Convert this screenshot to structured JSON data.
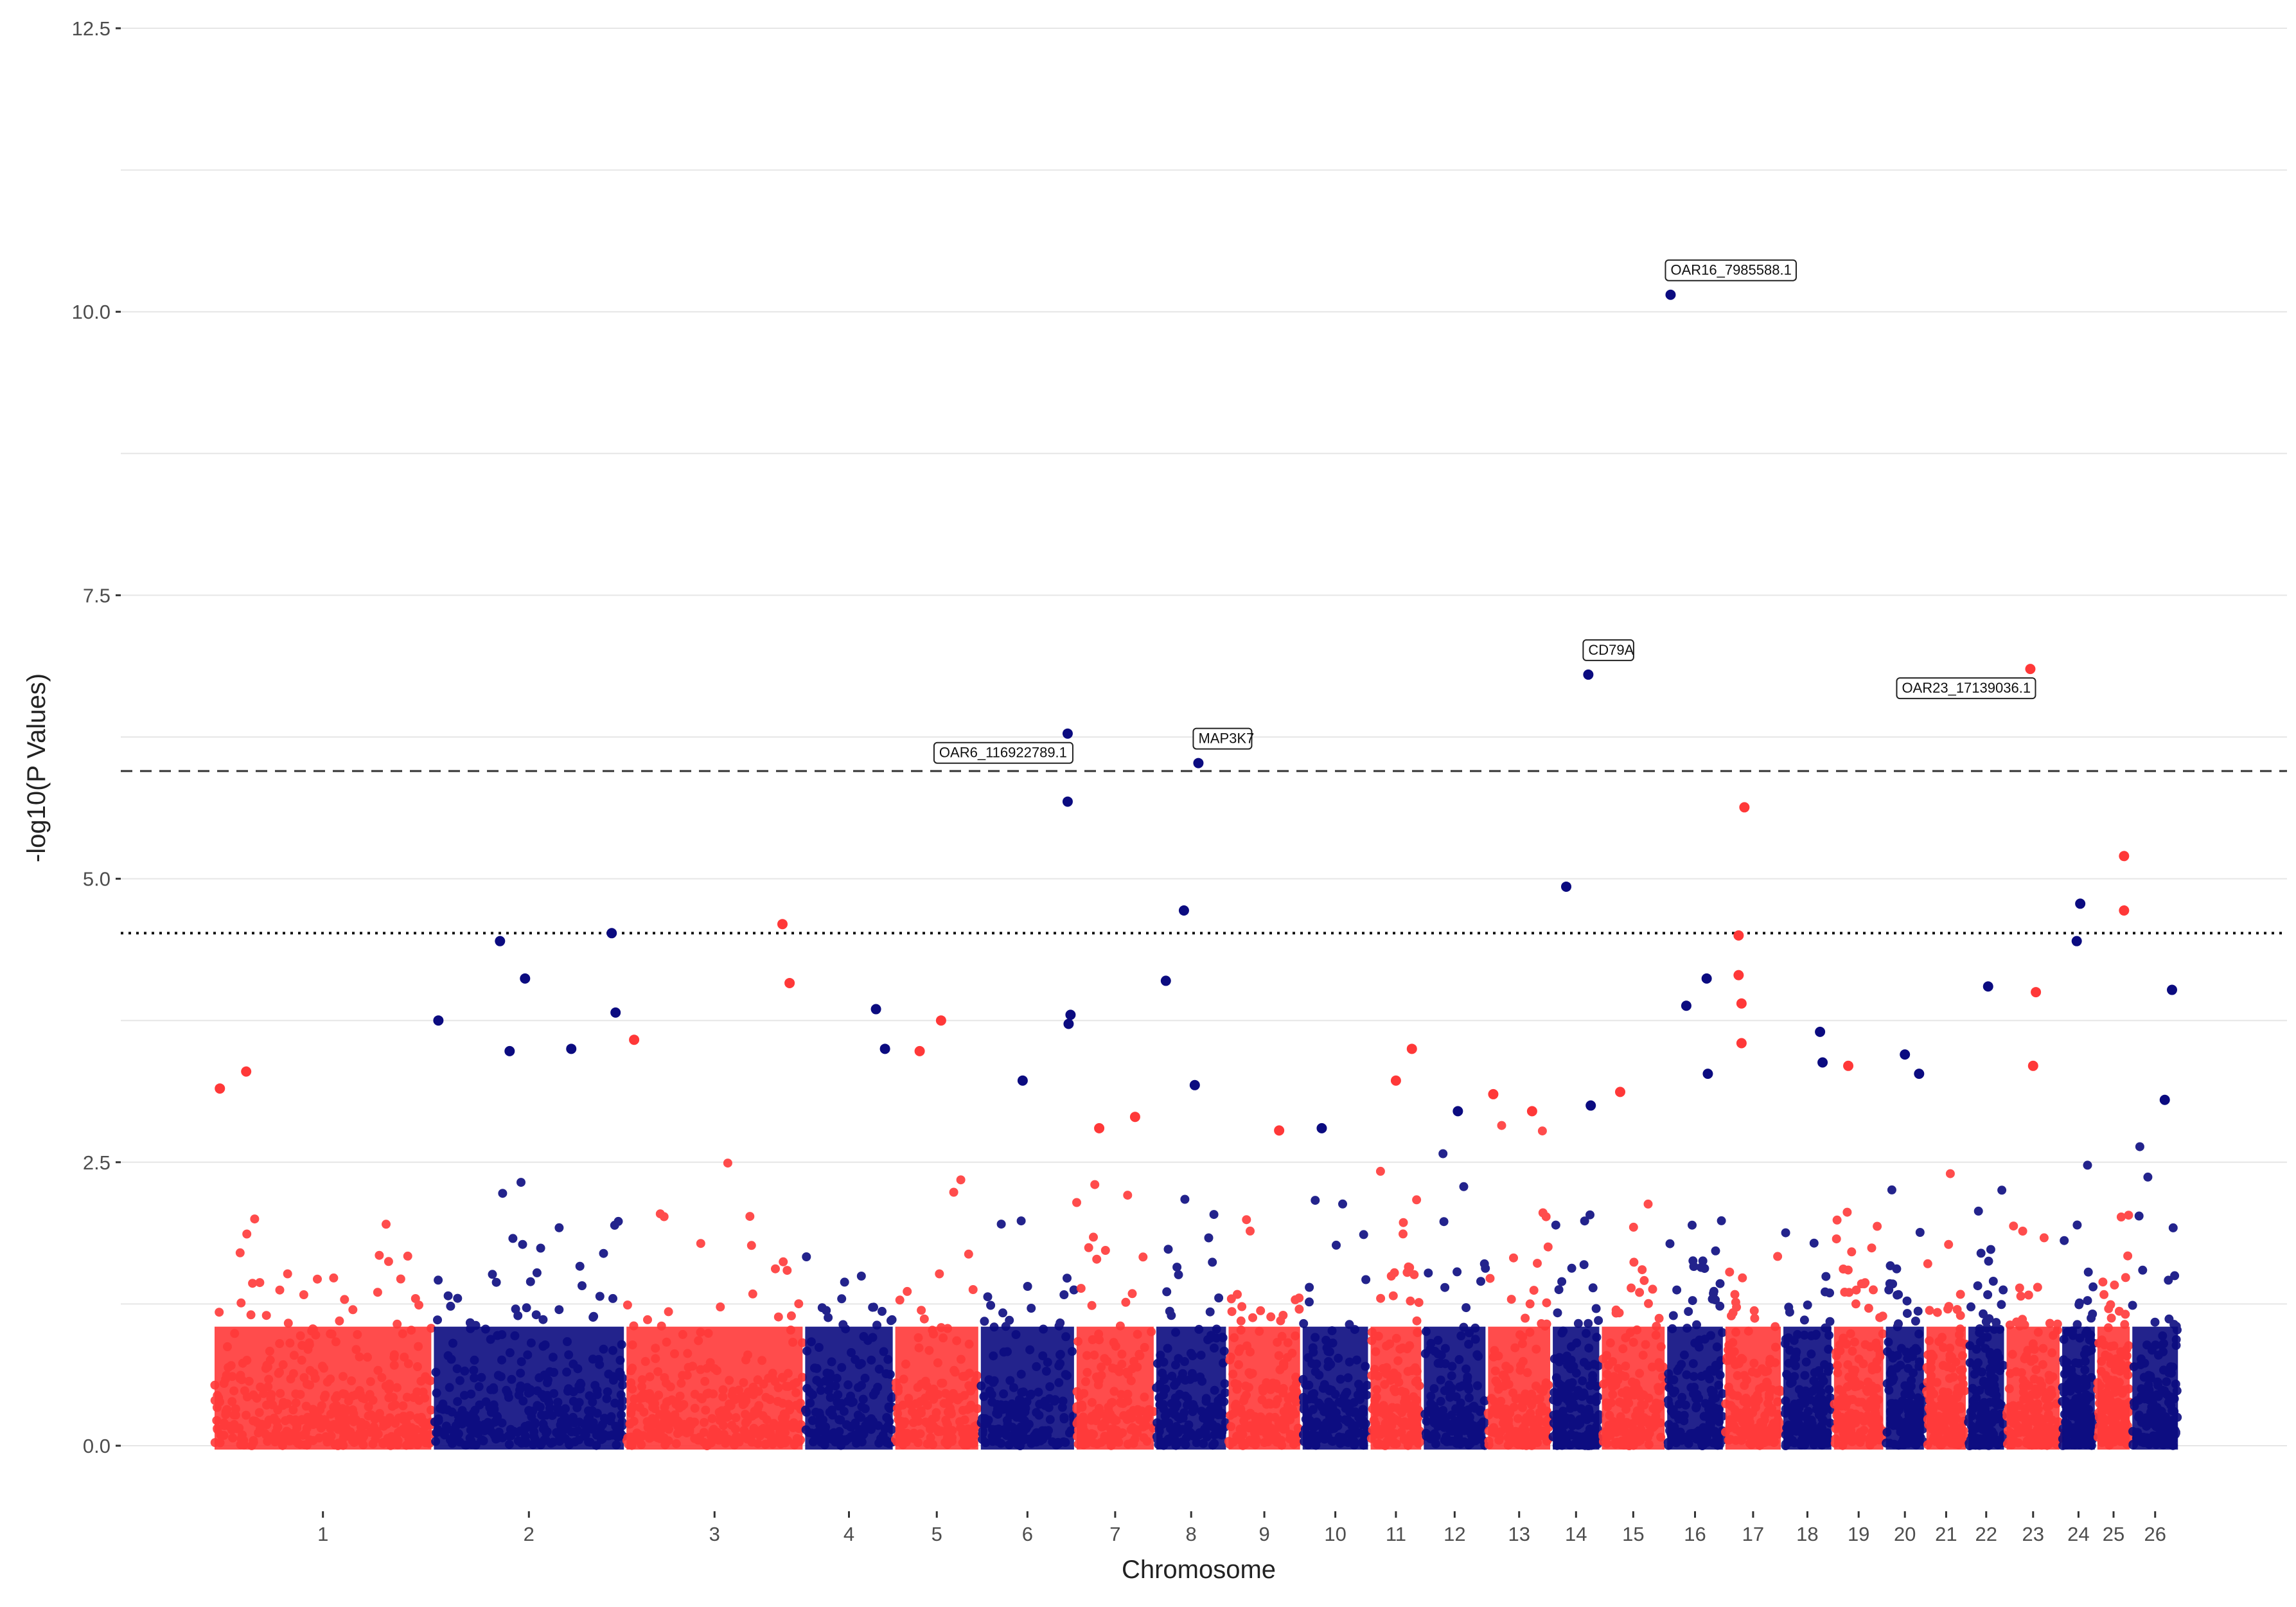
{
  "colors": {
    "odd_chromosome": "#ff3838",
    "even_chromosome": "#0b0b80",
    "grid": "#e6e6e6",
    "threshold": "#333333",
    "background": "#ffffff"
  },
  "chart_data": {
    "type": "scatter",
    "title": "",
    "xlabel": "Chromosome",
    "ylabel": "-log10(P Values)",
    "ylim": [
      0,
      12.5
    ],
    "y_ticks": [
      0.0,
      2.5,
      5.0,
      7.5,
      10.0,
      12.5
    ],
    "y_tick_labels": [
      "0.0",
      "2.5",
      "5.0",
      "7.5",
      "10.0",
      "12.5"
    ],
    "grid": true,
    "legend": "none",
    "genome_wide_threshold": 5.95,
    "suggestive_threshold": 4.52,
    "chromosomes": [
      {
        "label": "1",
        "start": 0,
        "end": 0.101,
        "color": "odd",
        "max_background": 3.3
      },
      {
        "label": "2",
        "start": 0.101,
        "end": 0.1897,
        "color": "even",
        "max_background": 2.7
      },
      {
        "label": "3",
        "start": 0.1897,
        "end": 0.272,
        "color": "odd",
        "max_background": 2.8
      },
      {
        "label": "4",
        "start": 0.272,
        "end": 0.3135,
        "color": "even",
        "max_background": 2.4
      },
      {
        "label": "5",
        "start": 0.3135,
        "end": 0.3529,
        "color": "odd",
        "max_background": 2.5
      },
      {
        "label": "6",
        "start": 0.3529,
        "end": 0.397,
        "color": "even",
        "max_background": 2.2
      },
      {
        "label": "7",
        "start": 0.397,
        "end": 0.4337,
        "color": "odd",
        "max_background": 2.5
      },
      {
        "label": "8",
        "start": 0.4337,
        "end": 0.467,
        "color": "even",
        "max_background": 2.4
      },
      {
        "label": "9",
        "start": 0.467,
        "end": 0.5011,
        "color": "odd",
        "max_background": 2.9
      },
      {
        "label": "10",
        "start": 0.5011,
        "end": 0.5324,
        "color": "even",
        "max_background": 2.4
      },
      {
        "label": "11",
        "start": 0.5324,
        "end": 0.5569,
        "color": "odd",
        "max_background": 2.5
      },
      {
        "label": "12",
        "start": 0.5569,
        "end": 0.5865,
        "color": "even",
        "max_background": 2.9
      },
      {
        "label": "13",
        "start": 0.5865,
        "end": 0.6163,
        "color": "odd",
        "max_background": 2.9
      },
      {
        "label": "14",
        "start": 0.6163,
        "end": 0.6389,
        "color": "even",
        "max_background": 2.5
      },
      {
        "label": "15",
        "start": 0.6389,
        "end": 0.669,
        "color": "odd",
        "max_background": 2.6
      },
      {
        "label": "16",
        "start": 0.669,
        "end": 0.6958,
        "color": "even",
        "max_background": 2.4
      },
      {
        "label": "17",
        "start": 0.6958,
        "end": 0.7225,
        "color": "odd",
        "max_background": 2.8
      },
      {
        "label": "18",
        "start": 0.7225,
        "end": 0.7458,
        "color": "even",
        "max_background": 2.5
      },
      {
        "label": "19",
        "start": 0.7458,
        "end": 0.7697,
        "color": "odd",
        "max_background": 2.1
      },
      {
        "label": "20",
        "start": 0.7697,
        "end": 0.7884,
        "color": "even",
        "max_background": 2.3
      },
      {
        "label": "21",
        "start": 0.7884,
        "end": 0.8077,
        "color": "odd",
        "max_background": 2.6
      },
      {
        "label": "22",
        "start": 0.8077,
        "end": 0.8253,
        "color": "even",
        "max_background": 2.6
      },
      {
        "label": "23",
        "start": 0.8253,
        "end": 0.8509,
        "color": "odd",
        "max_background": 2.7
      },
      {
        "label": "24",
        "start": 0.8509,
        "end": 0.8671,
        "color": "even",
        "max_background": 2.6
      },
      {
        "label": "25",
        "start": 0.8671,
        "end": 0.8832,
        "color": "odd",
        "max_background": 2.3
      },
      {
        "label": "26",
        "start": 0.8832,
        "end": 0.9054,
        "color": "even",
        "max_background": 3.0
      }
    ],
    "notable_points": [
      {
        "chromosome": "1",
        "pos": 0.03,
        "y": 3.15
      },
      {
        "chromosome": "1",
        "pos": 0.15,
        "y": 3.3
      },
      {
        "chromosome": "2",
        "pos": 0.03,
        "y": 3.75
      },
      {
        "chromosome": "2",
        "pos": 0.35,
        "y": 4.45
      },
      {
        "chromosome": "2",
        "pos": 0.48,
        "y": 4.12
      },
      {
        "chromosome": "2",
        "pos": 0.4,
        "y": 3.48
      },
      {
        "chromosome": "2",
        "pos": 0.72,
        "y": 3.5
      },
      {
        "chromosome": "2",
        "pos": 0.93,
        "y": 4.52
      },
      {
        "chromosome": "2",
        "pos": 0.95,
        "y": 3.82
      },
      {
        "chromosome": "3",
        "pos": 0.05,
        "y": 3.58
      },
      {
        "chromosome": "3",
        "pos": 0.88,
        "y": 4.6
      },
      {
        "chromosome": "3",
        "pos": 0.92,
        "y": 4.08
      },
      {
        "chromosome": "4",
        "pos": 0.8,
        "y": 3.85
      },
      {
        "chromosome": "4",
        "pos": 0.9,
        "y": 3.5
      },
      {
        "chromosome": "5",
        "pos": 0.55,
        "y": 3.75
      },
      {
        "chromosome": "5",
        "pos": 0.3,
        "y": 3.48
      },
      {
        "chromosome": "6",
        "pos": 0.45,
        "y": 3.22
      },
      {
        "chromosome": "6",
        "pos": 0.92,
        "y": 6.28
      },
      {
        "chromosome": "6",
        "pos": 0.92,
        "y": 5.68
      },
      {
        "chromosome": "6",
        "pos": 0.95,
        "y": 3.8
      },
      {
        "chromosome": "6",
        "pos": 0.93,
        "y": 3.72
      },
      {
        "chromosome": "7",
        "pos": 0.3,
        "y": 2.8
      },
      {
        "chromosome": "7",
        "pos": 0.75,
        "y": 2.9
      },
      {
        "chromosome": "8",
        "pos": 0.15,
        "y": 4.1
      },
      {
        "chromosome": "8",
        "pos": 0.4,
        "y": 4.72
      },
      {
        "chromosome": "8",
        "pos": 0.6,
        "y": 6.02
      },
      {
        "chromosome": "8",
        "pos": 0.55,
        "y": 3.18
      },
      {
        "chromosome": "9",
        "pos": 0.7,
        "y": 2.78
      },
      {
        "chromosome": "10",
        "pos": 0.3,
        "y": 2.8
      },
      {
        "chromosome": "11",
        "pos": 0.8,
        "y": 3.5
      },
      {
        "chromosome": "11",
        "pos": 0.5,
        "y": 3.22
      },
      {
        "chromosome": "12",
        "pos": 0.55,
        "y": 2.95
      },
      {
        "chromosome": "13",
        "pos": 0.1,
        "y": 3.1
      },
      {
        "chromosome": "13",
        "pos": 0.7,
        "y": 2.95
      },
      {
        "chromosome": "14",
        "pos": 0.3,
        "y": 4.93
      },
      {
        "chromosome": "14",
        "pos": 0.75,
        "y": 6.8
      },
      {
        "chromosome": "14",
        "pos": 0.8,
        "y": 3.0
      },
      {
        "chromosome": "15",
        "pos": 0.3,
        "y": 3.12
      },
      {
        "chromosome": "16",
        "pos": 0.08,
        "y": 10.15
      },
      {
        "chromosome": "16",
        "pos": 0.35,
        "y": 3.88
      },
      {
        "chromosome": "16",
        "pos": 0.7,
        "y": 4.12
      },
      {
        "chromosome": "16",
        "pos": 0.72,
        "y": 3.28
      },
      {
        "chromosome": "17",
        "pos": 0.35,
        "y": 5.63
      },
      {
        "chromosome": "17",
        "pos": 0.25,
        "y": 4.5
      },
      {
        "chromosome": "17",
        "pos": 0.25,
        "y": 4.15
      },
      {
        "chromosome": "17",
        "pos": 0.3,
        "y": 3.9
      },
      {
        "chromosome": "17",
        "pos": 0.3,
        "y": 3.55
      },
      {
        "chromosome": "18",
        "pos": 0.75,
        "y": 3.65
      },
      {
        "chromosome": "18",
        "pos": 0.8,
        "y": 3.38
      },
      {
        "chromosome": "19",
        "pos": 0.3,
        "y": 3.35
      },
      {
        "chromosome": "20",
        "pos": 0.5,
        "y": 3.45
      },
      {
        "chromosome": "20",
        "pos": 0.85,
        "y": 3.28
      },
      {
        "chromosome": "22",
        "pos": 0.55,
        "y": 4.05
      },
      {
        "chromosome": "23",
        "pos": 0.45,
        "y": 6.85
      },
      {
        "chromosome": "23",
        "pos": 0.55,
        "y": 4.0
      },
      {
        "chromosome": "23",
        "pos": 0.5,
        "y": 3.35
      },
      {
        "chromosome": "24",
        "pos": 0.55,
        "y": 4.78
      },
      {
        "chromosome": "24",
        "pos": 0.45,
        "y": 4.45
      },
      {
        "chromosome": "25",
        "pos": 0.8,
        "y": 5.2
      },
      {
        "chromosome": "25",
        "pos": 0.8,
        "y": 4.72
      },
      {
        "chromosome": "26",
        "pos": 0.85,
        "y": 4.02
      },
      {
        "chromosome": "26",
        "pos": 0.7,
        "y": 3.05
      }
    ],
    "annotations": [
      {
        "text": "OAR6_116922789.1",
        "chromosome": "6",
        "pos": 0.92,
        "y": 6.28,
        "placement": "below-left"
      },
      {
        "text": "MAP3K7",
        "chromosome": "8",
        "pos": 0.6,
        "y": 6.02,
        "placement": "above-right"
      },
      {
        "text": "CD79A",
        "chromosome": "14",
        "pos": 0.75,
        "y": 6.8,
        "placement": "above-right"
      },
      {
        "text": "OAR16_7985588.1",
        "chromosome": "16",
        "pos": 0.08,
        "y": 10.15,
        "placement": "above-right"
      },
      {
        "text": "OAR23_17139036.1",
        "chromosome": "23",
        "pos": 0.45,
        "y": 6.85,
        "placement": "below-left"
      }
    ]
  }
}
